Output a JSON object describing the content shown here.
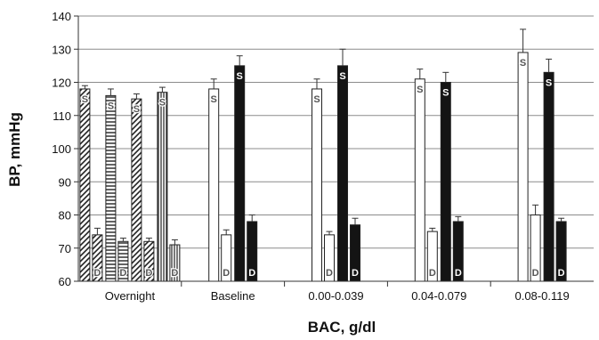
{
  "chart_data": {
    "type": "bar",
    "title": "",
    "xlabel": "BAC, g/dl",
    "ylabel": "BP, mmHg",
    "ylim": [
      60,
      140
    ],
    "yticks": [
      60,
      70,
      80,
      90,
      100,
      110,
      120,
      130,
      140
    ],
    "grid": true,
    "legend": "none",
    "categories": [
      "Overnight",
      "Baseline",
      "0.00-0.039",
      "0.04-0.079",
      "0.08-0.119"
    ],
    "mark_labels": {
      "systolic": "S",
      "diastolic": "D"
    },
    "series": [
      {
        "group": "Overnight",
        "pattern": "diagonal",
        "values": [
          {
            "measure": "systolic",
            "value": 118,
            "error": 1
          },
          {
            "measure": "diastolic",
            "value": 74,
            "error": 2
          }
        ]
      },
      {
        "group": "Overnight",
        "pattern": "horizontal",
        "values": [
          {
            "measure": "systolic",
            "value": 116,
            "error": 2
          },
          {
            "measure": "diastolic",
            "value": 72,
            "error": 1
          }
        ]
      },
      {
        "group": "Overnight",
        "pattern": "diagonal",
        "values": [
          {
            "measure": "systolic",
            "value": 115,
            "error": 1.5
          },
          {
            "measure": "diastolic",
            "value": 72,
            "error": 1
          }
        ]
      },
      {
        "group": "Overnight",
        "pattern": "vertical",
        "values": [
          {
            "measure": "systolic",
            "value": 117,
            "error": 1.5
          },
          {
            "measure": "diastolic",
            "value": 71,
            "error": 1.5
          }
        ]
      },
      {
        "group": "Baseline",
        "pattern": "open",
        "values": [
          {
            "measure": "systolic",
            "value": 118,
            "error": 3
          },
          {
            "measure": "diastolic",
            "value": 74,
            "error": 1.5
          }
        ]
      },
      {
        "group": "Baseline",
        "pattern": "solid",
        "values": [
          {
            "measure": "systolic",
            "value": 125,
            "error": 3
          },
          {
            "measure": "diastolic",
            "value": 78,
            "error": 2
          }
        ]
      },
      {
        "group": "0.00-0.039",
        "pattern": "open",
        "values": [
          {
            "measure": "systolic",
            "value": 118,
            "error": 3
          },
          {
            "measure": "diastolic",
            "value": 74,
            "error": 1
          }
        ]
      },
      {
        "group": "0.00-0.039",
        "pattern": "solid",
        "values": [
          {
            "measure": "systolic",
            "value": 125,
            "error": 5
          },
          {
            "measure": "diastolic",
            "value": 77,
            "error": 2
          }
        ]
      },
      {
        "group": "0.04-0.079",
        "pattern": "open",
        "values": [
          {
            "measure": "systolic",
            "value": 121,
            "error": 3
          },
          {
            "measure": "diastolic",
            "value": 75,
            "error": 1
          }
        ]
      },
      {
        "group": "0.04-0.079",
        "pattern": "solid",
        "values": [
          {
            "measure": "systolic",
            "value": 120,
            "error": 3
          },
          {
            "measure": "diastolic",
            "value": 78,
            "error": 1.5
          }
        ]
      },
      {
        "group": "0.08-0.119",
        "pattern": "open",
        "values": [
          {
            "measure": "systolic",
            "value": 129,
            "error": 7
          },
          {
            "measure": "diastolic",
            "value": 80,
            "error": 3
          }
        ]
      },
      {
        "group": "0.08-0.119",
        "pattern": "solid",
        "values": [
          {
            "measure": "systolic",
            "value": 123,
            "error": 4
          },
          {
            "measure": "diastolic",
            "value": 78,
            "error": 1
          }
        ]
      }
    ]
  }
}
